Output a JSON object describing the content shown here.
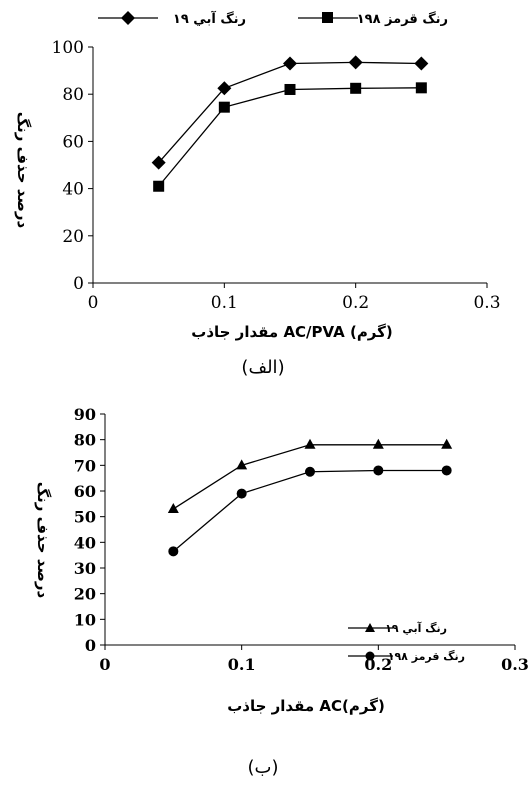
{
  "chart_data": [
    {
      "type": "line",
      "caption": "(الف)",
      "xlabel": "مقدار جاذب AC/PVA (گرم)",
      "ylabel": "درصد حذف رنگ",
      "xlim": [
        0,
        0.3
      ],
      "ylim": [
        0,
        100
      ],
      "x_ticks": [
        "0",
        "0.1",
        "0.2",
        "0.3"
      ],
      "y_ticks": [
        "0",
        "20",
        "40",
        "60",
        "80",
        "100"
      ],
      "legend_position": "top",
      "grid": false,
      "x": [
        0.05,
        0.1,
        0.15,
        0.2,
        0.25
      ],
      "series": [
        {
          "name": "رنگ آبي ١٩",
          "marker": "diamond",
          "values": [
            51,
            82.5,
            93,
            93.5,
            93
          ]
        },
        {
          "name": "رنگ قرمز ١٩٨",
          "marker": "square",
          "values": [
            41,
            74.5,
            82,
            82.5,
            82.7
          ]
        }
      ]
    },
    {
      "type": "line",
      "caption": "(ب)",
      "xlabel": "مقدار جاذب AC(گرم)",
      "ylabel": "درصد حذف رنگ",
      "xlim": [
        0,
        0.3
      ],
      "ylim": [
        0,
        90
      ],
      "x_ticks": [
        "0",
        "0.1",
        "0.2",
        "0.3"
      ],
      "y_ticks": [
        "0",
        "10",
        "20",
        "30",
        "40",
        "50",
        "60",
        "70",
        "80",
        "90"
      ],
      "legend_position": "bottom-right",
      "grid": false,
      "x": [
        0.05,
        0.1,
        0.15,
        0.2,
        0.25
      ],
      "series": [
        {
          "name": "رنگ آبي ١٩",
          "marker": "triangle",
          "values": [
            53,
            70,
            78,
            78,
            78
          ]
        },
        {
          "name": "رنگ قرمز ١٩٨",
          "marker": "circle",
          "values": [
            36.5,
            59,
            67.5,
            68,
            68
          ]
        }
      ]
    }
  ]
}
